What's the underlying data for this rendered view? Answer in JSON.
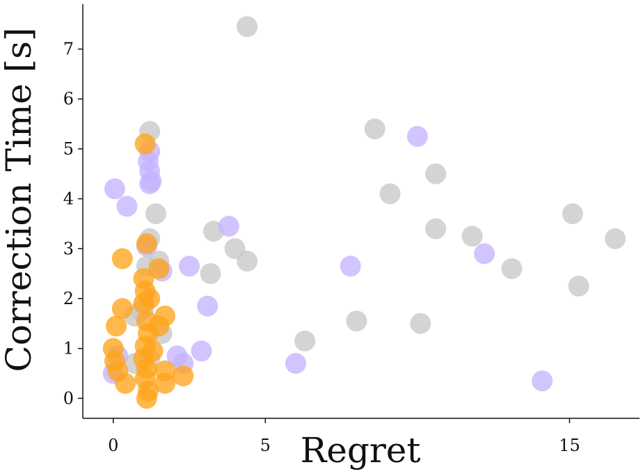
{
  "chart_data": {
    "type": "scatter",
    "xlabel": "Regret",
    "ylabel": "Correction Time [s]",
    "xlim": [
      -1.0,
      17.3
    ],
    "ylim": [
      -0.4,
      7.9
    ],
    "x_ticks": [
      0,
      5,
      15
    ],
    "y_ticks": [
      0,
      1,
      2,
      3,
      4,
      5,
      6,
      7
    ],
    "grid": false,
    "legend": "none",
    "series": [
      {
        "color": "#c8c8c8",
        "points": [
          [
            4.4,
            7.45
          ],
          [
            1.2,
            5.35
          ],
          [
            1.4,
            3.7
          ],
          [
            1.2,
            3.2
          ],
          [
            1.1,
            2.65
          ],
          [
            1.5,
            2.75
          ],
          [
            0.7,
            1.65
          ],
          [
            0.9,
            1.75
          ],
          [
            1.0,
            1.8
          ],
          [
            1.6,
            1.3
          ],
          [
            1.2,
            0.8
          ],
          [
            0.7,
            0.7
          ],
          [
            3.3,
            3.35
          ],
          [
            4.0,
            3.0
          ],
          [
            4.4,
            2.75
          ],
          [
            3.2,
            2.5
          ],
          [
            6.3,
            1.15
          ],
          [
            8.0,
            1.55
          ],
          [
            8.6,
            5.4
          ],
          [
            9.1,
            4.1
          ],
          [
            10.6,
            4.5
          ],
          [
            10.6,
            3.4
          ],
          [
            11.8,
            3.25
          ],
          [
            10.1,
            1.5
          ],
          [
            13.1,
            2.6
          ],
          [
            15.1,
            3.7
          ],
          [
            15.3,
            2.25
          ],
          [
            16.5,
            3.2
          ]
        ]
      },
      {
        "color": "#c5b3ff",
        "points": [
          [
            0.05,
            4.2
          ],
          [
            0.45,
            3.85
          ],
          [
            1.2,
            4.95
          ],
          [
            1.15,
            4.75
          ],
          [
            1.2,
            4.55
          ],
          [
            1.25,
            4.35
          ],
          [
            1.2,
            4.3
          ],
          [
            1.1,
            3.05
          ],
          [
            1.6,
            2.55
          ],
          [
            2.5,
            2.65
          ],
          [
            3.1,
            1.85
          ],
          [
            2.9,
            0.95
          ],
          [
            2.1,
            0.85
          ],
          [
            2.3,
            0.7
          ],
          [
            0.0,
            0.5
          ],
          [
            0.15,
            0.85
          ],
          [
            3.8,
            3.45
          ],
          [
            6.0,
            0.7
          ],
          [
            7.8,
            2.65
          ],
          [
            10.0,
            5.25
          ],
          [
            12.2,
            2.9
          ],
          [
            14.1,
            0.35
          ]
        ]
      },
      {
        "color": "#ffa41b",
        "points": [
          [
            1.05,
            5.1
          ],
          [
            1.1,
            3.1
          ],
          [
            0.3,
            2.8
          ],
          [
            0.3,
            1.8
          ],
          [
            0.1,
            1.45
          ],
          [
            0.0,
            1.0
          ],
          [
            0.05,
            0.75
          ],
          [
            0.15,
            0.55
          ],
          [
            0.4,
            0.3
          ],
          [
            1.0,
            2.4
          ],
          [
            1.05,
            2.15
          ],
          [
            1.0,
            1.9
          ],
          [
            1.1,
            1.55
          ],
          [
            1.15,
            1.3
          ],
          [
            1.05,
            1.05
          ],
          [
            1.0,
            0.8
          ],
          [
            1.1,
            0.6
          ],
          [
            1.05,
            0.4
          ],
          [
            1.15,
            0.15
          ],
          [
            1.1,
            0.0
          ],
          [
            1.2,
            2.0
          ],
          [
            1.5,
            2.6
          ],
          [
            1.5,
            1.45
          ],
          [
            1.7,
            1.65
          ],
          [
            1.7,
            0.55
          ],
          [
            1.7,
            0.3
          ],
          [
            2.3,
            0.45
          ],
          [
            1.3,
            0.95
          ]
        ]
      }
    ]
  }
}
